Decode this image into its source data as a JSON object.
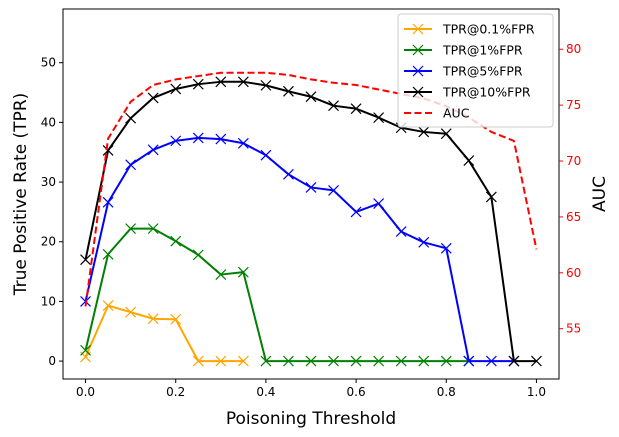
{
  "chart_data": {
    "type": "line",
    "xlabel": "Poisoning Threshold",
    "ylabel": "True Positive Rate (TPR)",
    "y2label": "AUC",
    "xlim": [
      -0.05,
      1.05
    ],
    "ylim": [
      -3,
      59
    ],
    "y2lim": [
      50.5,
      83.6
    ],
    "xticks": [
      0.0,
      0.2,
      0.4,
      0.6,
      0.8,
      1.0
    ],
    "yticks": [
      0,
      10,
      20,
      30,
      40,
      50
    ],
    "y2ticks": [
      55,
      60,
      65,
      70,
      75,
      80
    ],
    "legend_position": "top-right",
    "colors": {
      "tpr01": "#ffa500",
      "tpr1": "#008000",
      "tpr5": "#0000ff",
      "tpr10": "#000000",
      "auc": "#ff0000"
    },
    "series": [
      {
        "key": "tpr01",
        "name": "TPR@0.1%FPR",
        "x": [
          0.0,
          0.05,
          0.1,
          0.15,
          0.2,
          0.25,
          0.3,
          0.35
        ],
        "values": [
          0.7,
          9.3,
          8.2,
          7.1,
          7.0,
          0.0,
          0.0,
          0.0
        ]
      },
      {
        "key": "tpr1",
        "name": "TPR@1%FPR",
        "x": [
          0.0,
          0.05,
          0.1,
          0.15,
          0.2,
          0.25,
          0.3,
          0.35,
          0.4,
          0.45,
          0.5,
          0.55,
          0.6,
          0.65,
          0.7,
          0.75,
          0.8,
          0.85
        ],
        "values": [
          1.8,
          17.9,
          22.2,
          22.2,
          20.1,
          17.8,
          14.5,
          14.9,
          0.0,
          0.0,
          0.0,
          0.0,
          0.0,
          0.0,
          0.0,
          0.0,
          0.0,
          0.0
        ]
      },
      {
        "key": "tpr5",
        "name": "TPR@5%FPR",
        "x": [
          0.0,
          0.05,
          0.1,
          0.15,
          0.2,
          0.25,
          0.3,
          0.35,
          0.4,
          0.45,
          0.5,
          0.55,
          0.6,
          0.65,
          0.7,
          0.75,
          0.8,
          0.85,
          0.9,
          0.95
        ],
        "values": [
          10.0,
          26.6,
          32.9,
          35.4,
          36.9,
          37.4,
          37.2,
          36.5,
          34.5,
          31.3,
          29.1,
          28.6,
          25.0,
          26.4,
          21.7,
          19.9,
          18.9,
          0.0,
          0.0,
          0.0
        ]
      },
      {
        "key": "tpr10",
        "name": "TPR@10%FPR",
        "x": [
          0.0,
          0.05,
          0.1,
          0.15,
          0.2,
          0.25,
          0.3,
          0.35,
          0.4,
          0.45,
          0.5,
          0.55,
          0.6,
          0.65,
          0.7,
          0.75,
          0.8,
          0.85,
          0.9,
          0.95,
          1.0
        ],
        "values": [
          17.0,
          35.3,
          40.7,
          44.1,
          45.6,
          46.4,
          46.8,
          46.8,
          46.2,
          45.2,
          44.3,
          42.8,
          42.3,
          40.8,
          39.1,
          38.4,
          38.1,
          33.6,
          27.5,
          0.0,
          0.0
        ]
      },
      {
        "key": "auc",
        "name": "AUC",
        "axis": "right",
        "x": [
          0.0,
          0.05,
          0.1,
          0.15,
          0.2,
          0.25,
          0.3,
          0.35,
          0.4,
          0.45,
          0.5,
          0.55,
          0.6,
          0.65,
          0.7,
          0.75,
          0.8,
          0.85,
          0.9,
          0.95,
          1.0
        ],
        "values": [
          57.0,
          72.0,
          75.3,
          76.8,
          77.3,
          77.6,
          77.9,
          77.9,
          77.9,
          77.7,
          77.3,
          77.0,
          76.8,
          76.4,
          76.0,
          75.6,
          74.9,
          73.9,
          72.6,
          71.8,
          62.1
        ]
      }
    ]
  }
}
